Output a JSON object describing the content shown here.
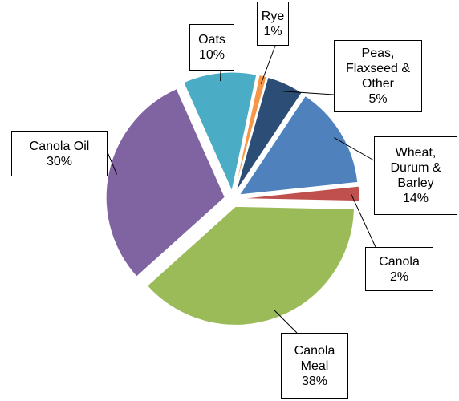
{
  "chart_data": {
    "type": "pie",
    "categories": [
      "Rye",
      "Peas, Flaxseed & Other",
      "Wheat, Durum & Barley",
      "Canola",
      "Canola Meal",
      "Canola Oil",
      "Oats"
    ],
    "values": [
      1,
      5,
      14,
      2,
      38,
      30,
      10
    ],
    "value_labels": [
      "1%",
      "5%",
      "14%",
      "2%",
      "38%",
      "30%",
      "10%"
    ],
    "colors": [
      "#f79646",
      "#2c4d75",
      "#4f81bd",
      "#c0504d",
      "#9bbb59",
      "#8064a2",
      "#4bacc6"
    ]
  }
}
